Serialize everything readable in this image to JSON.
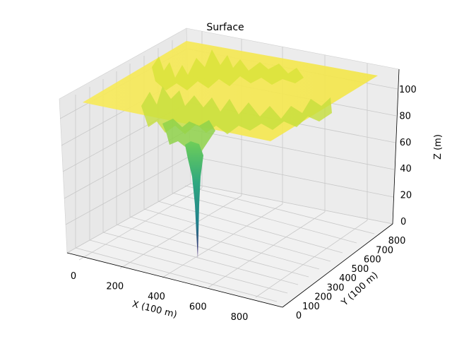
{
  "chart_data": {
    "type": "surface3d",
    "title": "Surface",
    "xlabel": "X (100 m)",
    "ylabel": "Y (100 m)",
    "zlabel": "Z (m)",
    "xticks": [
      "0",
      "200",
      "400",
      "600",
      "800"
    ],
    "yticks": [
      "0",
      "100",
      "200",
      "300",
      "400",
      "500",
      "600",
      "700",
      "800"
    ],
    "zticks": [
      "0",
      "20",
      "40",
      "60",
      "80",
      "100"
    ],
    "xlim": [
      0,
      900
    ],
    "ylim": [
      0,
      850
    ],
    "zlim": [
      0,
      115
    ],
    "plateau_z": 110,
    "min_z": 0,
    "sink_location": {
      "x": 500,
      "y": 400
    },
    "colormap": "viridis",
    "grid": true,
    "colors": {
      "pane": "#ececec",
      "plateau": "#f5e84a",
      "grid": "#c8c8c8"
    }
  }
}
